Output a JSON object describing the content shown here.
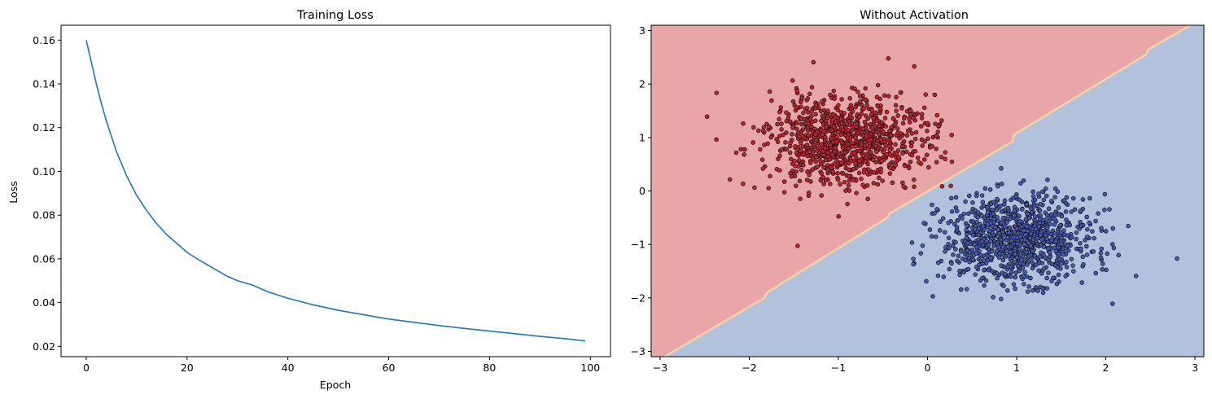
{
  "chart_data": [
    {
      "type": "line",
      "title": "Training Loss",
      "xlabel": "Epoch",
      "ylabel": "Loss",
      "xlim": [
        -5,
        104
      ],
      "ylim": [
        0.0153,
        0.1668
      ],
      "xticks": [
        0,
        20,
        40,
        60,
        80,
        100
      ],
      "yticks": [
        0.02,
        0.04,
        0.06,
        0.08,
        0.1,
        0.12,
        0.14,
        0.16
      ],
      "xtick_labels": [
        "0",
        "20",
        "40",
        "60",
        "80",
        "100"
      ],
      "ytick_labels": [
        "0.02",
        "0.04",
        "0.06",
        "0.08",
        "0.10",
        "0.12",
        "0.14",
        "0.16"
      ],
      "grid": false,
      "line_color": "#1f77b4",
      "series": [
        {
          "x": [
            0,
            1,
            2,
            3,
            4,
            5,
            6,
            8,
            10,
            12,
            14,
            16,
            18,
            20,
            22,
            25,
            28,
            30,
            33,
            36,
            40,
            45,
            50,
            55,
            60,
            65,
            70,
            75,
            80,
            85,
            90,
            95,
            99
          ],
          "values": [
            0.16,
            0.15,
            0.14,
            0.131,
            0.123,
            0.116,
            0.109,
            0.098,
            0.089,
            0.082,
            0.076,
            0.071,
            0.067,
            0.063,
            0.06,
            0.056,
            0.052,
            0.05,
            0.048,
            0.045,
            0.042,
            0.039,
            0.0365,
            0.0345,
            0.0325,
            0.031,
            0.0295,
            0.0282,
            0.027,
            0.0258,
            0.0246,
            0.0235,
            0.0225
          ]
        }
      ]
    },
    {
      "type": "scatter",
      "title": "Without Activation",
      "xlabel": "",
      "ylabel": "",
      "xlim": [
        -3.1,
        3.1
      ],
      "ylim": [
        -3.1,
        3.1
      ],
      "xticks": [
        -3,
        -2,
        -1,
        0,
        1,
        2,
        3
      ],
      "yticks": [
        -3,
        -2,
        -1,
        0,
        1,
        2,
        3
      ],
      "xtick_labels": [
        "−3",
        "−2",
        "−1",
        "0",
        "1",
        "2",
        "3"
      ],
      "ytick_labels": [
        "−3",
        "−2",
        "−1",
        "0",
        "1",
        "2",
        "3"
      ],
      "grid": false,
      "decision_boundary": {
        "line": [
          [
            -2.95,
            -3.1
          ],
          [
            -1.83,
            -2.0
          ],
          [
            -1.8,
            -1.9
          ],
          [
            -0.45,
            -0.5
          ],
          [
            -0.43,
            -0.43
          ],
          [
            0.95,
            0.92
          ],
          [
            0.97,
            1.05
          ],
          [
            2.45,
            2.55
          ],
          [
            2.48,
            2.65
          ],
          [
            2.95,
            3.1
          ]
        ],
        "region_above_color": "#e8a6a8",
        "region_below_color": "#b2c1dc",
        "edge_color": "#f2d4a8"
      },
      "series": [
        {
          "class": "upper-left",
          "color": "#c0222e",
          "center": [
            -0.9,
            0.95
          ],
          "spread": [
            0.45,
            0.42
          ],
          "count": 1000
        },
        {
          "class": "lower-right",
          "color": "#4758b0",
          "center": [
            1.0,
            -0.9
          ],
          "spread": [
            0.42,
            0.4
          ],
          "count": 1000
        }
      ]
    }
  ]
}
